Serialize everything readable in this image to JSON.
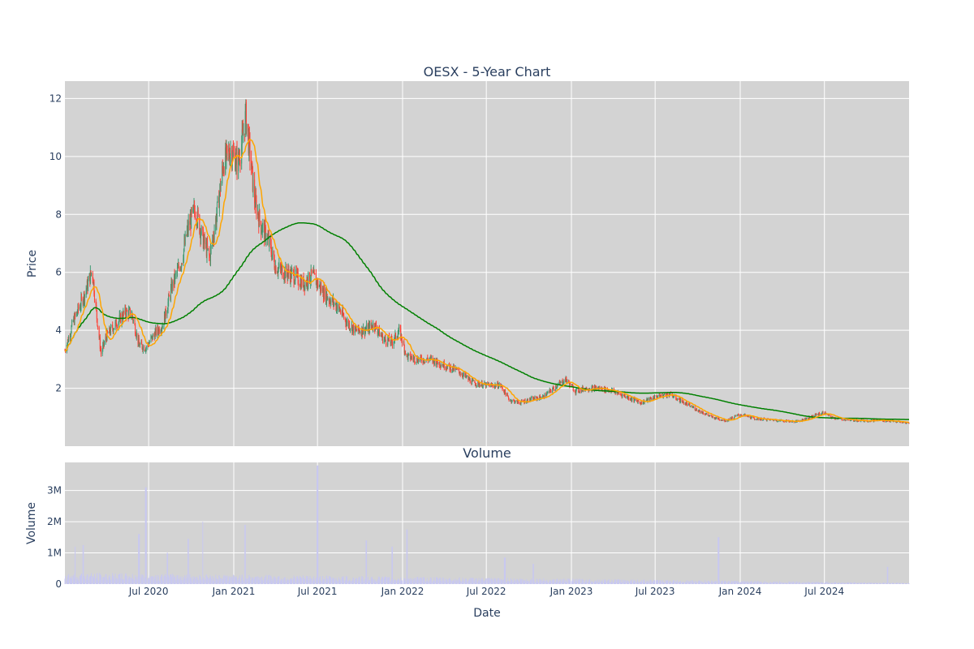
{
  "chart_data": [
    {
      "type": "candlestick",
      "title": "OESX - 5-Year Chart",
      "ylabel": "Price",
      "ylim": [
        0.0,
        12.6
      ],
      "y_ticks": [
        2,
        4,
        6,
        8,
        10,
        12
      ],
      "x_tick_labels": [
        "Jul 2020",
        "Jan 2021",
        "Jul 2021",
        "Jan 2022",
        "Jul 2022",
        "Jan 2023",
        "Jul 2023",
        "Jan 2024",
        "Jul 2024"
      ],
      "x_tick_dates": [
        "2020-07-01",
        "2021-01-01",
        "2021-07-01",
        "2022-01-01",
        "2022-07-01",
        "2023-01-01",
        "2023-07-01",
        "2024-01-01",
        "2024-07-01"
      ],
      "x_range": [
        "2020-01-02",
        "2024-12-31"
      ],
      "grid": true,
      "background": "#d3d3d3",
      "colors": {
        "up": "#3d9970",
        "down": "#ff4136",
        "ma_short": "#ffa500",
        "ma_long": "#008000"
      },
      "price_anchors": {
        "dates": [
          "2020-01-02",
          "2020-01-20",
          "2020-02-15",
          "2020-03-01",
          "2020-03-10",
          "2020-03-20",
          "2020-04-01",
          "2020-04-20",
          "2020-05-10",
          "2020-05-25",
          "2020-06-10",
          "2020-06-25",
          "2020-07-15",
          "2020-08-01",
          "2020-08-20",
          "2020-09-10",
          "2020-09-25",
          "2020-10-10",
          "2020-10-25",
          "2020-11-10",
          "2020-11-25",
          "2020-12-10",
          "2020-12-25",
          "2021-01-10",
          "2021-01-20",
          "2021-01-27",
          "2021-02-05",
          "2021-02-15",
          "2021-03-01",
          "2021-03-15",
          "2021-04-01",
          "2021-04-20",
          "2021-05-10",
          "2021-06-01",
          "2021-06-20",
          "2021-07-10",
          "2021-07-25",
          "2021-08-15",
          "2021-09-01",
          "2021-09-20",
          "2021-10-10",
          "2021-11-01",
          "2021-11-20",
          "2021-12-10",
          "2021-12-25",
          "2022-01-10",
          "2022-02-01",
          "2022-03-01",
          "2022-04-01",
          "2022-05-01",
          "2022-06-01",
          "2022-07-01",
          "2022-08-01",
          "2022-08-20",
          "2022-09-10",
          "2022-10-01",
          "2022-11-01",
          "2022-12-01",
          "2022-12-20",
          "2023-01-10",
          "2023-02-01",
          "2023-03-01",
          "2023-04-01",
          "2023-05-01",
          "2023-06-01",
          "2023-07-01",
          "2023-08-01",
          "2023-09-01",
          "2023-10-01",
          "2023-11-01",
          "2023-12-01",
          "2024-01-01",
          "2024-02-01",
          "2024-03-01",
          "2024-04-01",
          "2024-05-01",
          "2024-06-01",
          "2024-06-15",
          "2024-07-01",
          "2024-07-15",
          "2024-08-01",
          "2024-09-01",
          "2024-10-01",
          "2024-11-01",
          "2024-12-01",
          "2024-12-31"
        ],
        "close": [
          3.3,
          4.3,
          5.3,
          6.1,
          4.6,
          3.2,
          3.8,
          4.2,
          4.6,
          4.6,
          3.5,
          3.4,
          3.9,
          4.2,
          5.5,
          6.4,
          7.6,
          8.2,
          7.2,
          6.5,
          8.0,
          9.8,
          10.2,
          9.8,
          10.6,
          11.4,
          10.1,
          8.5,
          7.6,
          7.2,
          6.2,
          6.0,
          5.9,
          5.6,
          5.9,
          5.4,
          5.1,
          4.8,
          4.3,
          4.0,
          4.0,
          4.2,
          3.7,
          3.6,
          4.0,
          3.1,
          3.0,
          3.0,
          2.8,
          2.6,
          2.2,
          2.1,
          2.1,
          1.6,
          1.5,
          1.6,
          1.7,
          2.1,
          2.3,
          1.9,
          2.0,
          2.0,
          1.9,
          1.7,
          1.5,
          1.7,
          1.8,
          1.5,
          1.25,
          1.0,
          0.88,
          1.1,
          0.95,
          0.92,
          0.88,
          0.85,
          1.0,
          1.1,
          1.15,
          1.0,
          0.95,
          0.9,
          0.88,
          0.9,
          0.85,
          0.8
        ]
      },
      "series": [
        {
          "kind": "candles",
          "note": "daily OHLC"
        },
        {
          "kind": "moving-average-short",
          "color": "#ffa500"
        },
        {
          "kind": "moving-average-long",
          "color": "#008000"
        }
      ]
    },
    {
      "type": "bar",
      "title": "Volume",
      "xlabel": "Date",
      "ylabel": "Volume",
      "ylim": [
        0,
        3900000
      ],
      "y_ticks": [
        0,
        1000000,
        2000000,
        3000000
      ],
      "y_tick_labels": [
        "0",
        "1M",
        "2M",
        "3M"
      ],
      "bar_color": "#c8c8f0",
      "baseline_volume": 150000,
      "spikes": [
        {
          "date": "2020-01-25",
          "value": 1200000
        },
        {
          "date": "2020-02-10",
          "value": 1250000
        },
        {
          "date": "2020-06-10",
          "value": 1600000
        },
        {
          "date": "2020-06-25",
          "value": 3100000
        },
        {
          "date": "2020-08-10",
          "value": 1000000
        },
        {
          "date": "2020-09-25",
          "value": 1450000
        },
        {
          "date": "2020-10-25",
          "value": 2000000
        },
        {
          "date": "2021-01-25",
          "value": 1900000
        },
        {
          "date": "2021-07-01",
          "value": 3800000
        },
        {
          "date": "2021-10-15",
          "value": 1400000
        },
        {
          "date": "2021-12-10",
          "value": 1200000
        },
        {
          "date": "2022-01-10",
          "value": 1750000
        },
        {
          "date": "2022-08-10",
          "value": 850000
        },
        {
          "date": "2022-10-10",
          "value": 650000
        },
        {
          "date": "2023-11-15",
          "value": 1500000
        },
        {
          "date": "2024-11-15",
          "value": 550000
        }
      ]
    }
  ]
}
